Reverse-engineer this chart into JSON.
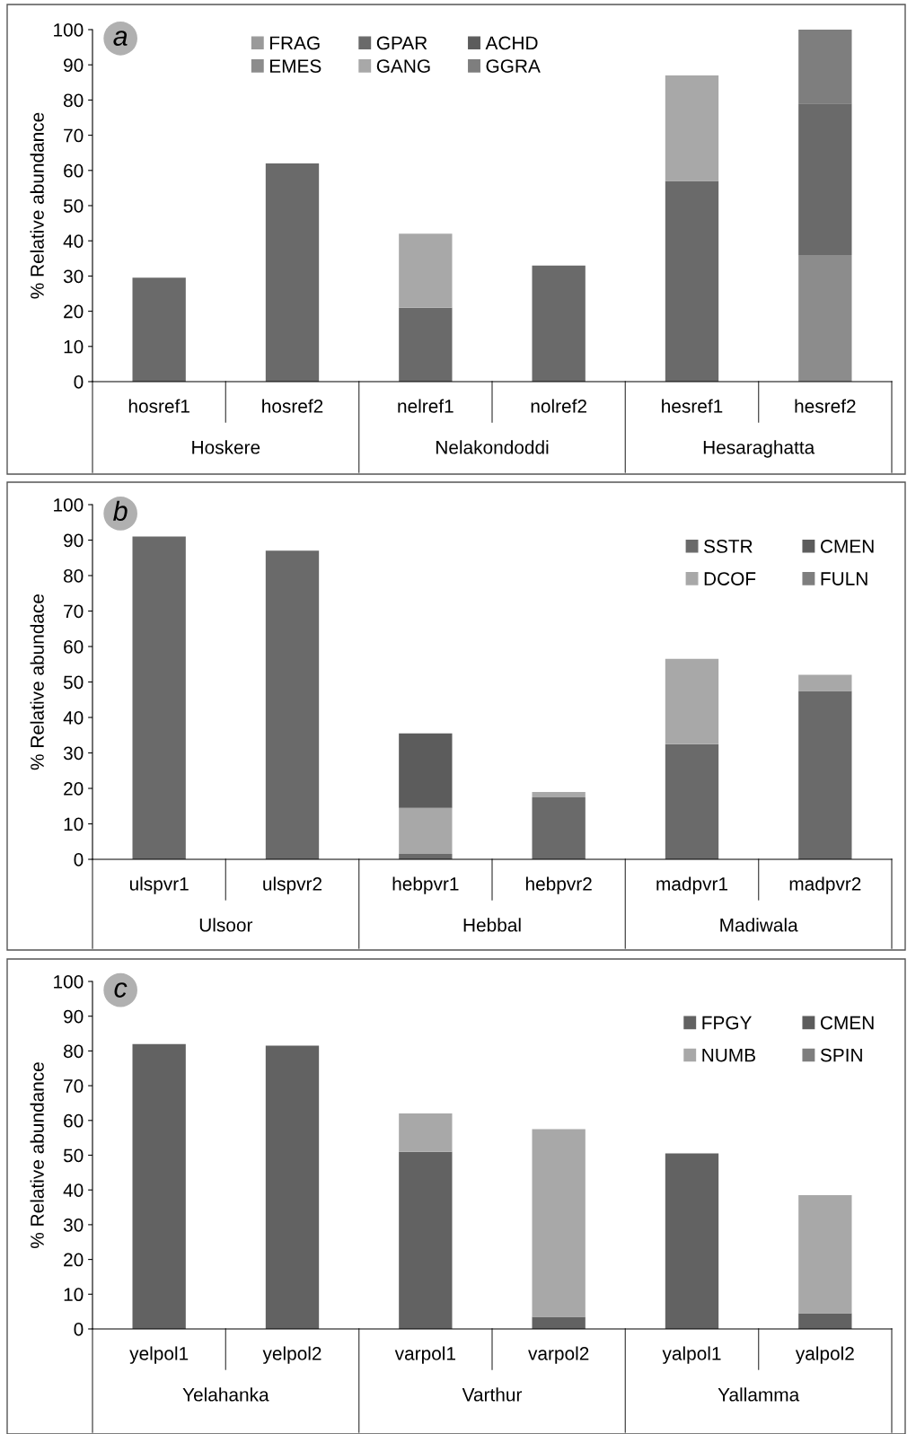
{
  "chart_data": [
    {
      "type": "bar",
      "stacked": true,
      "title": "a",
      "ylabel": "% Relative abundance",
      "categories": [
        "hosref1",
        "hosref2",
        "nelref1",
        "nolref2",
        "hesref1",
        "hesref2"
      ],
      "annotations": [
        "Hoskere",
        "Nelakondoddi",
        "Hesaraghatta"
      ],
      "ylim": [
        0,
        100
      ],
      "yticks": [
        0,
        10,
        20,
        30,
        40,
        50,
        60,
        70,
        80,
        90,
        100
      ],
      "grid": false,
      "legend": "top",
      "series": [
        {
          "name": "FRAG",
          "color": "#9a9a9a",
          "values": [
            null,
            null,
            null,
            null,
            null,
            null
          ]
        },
        {
          "name": "EMES",
          "color": "#8c8c8c",
          "values": [
            null,
            null,
            null,
            null,
            null,
            36
          ]
        },
        {
          "name": "GPAR",
          "color": "#6a6a6a",
          "values": [
            29.5,
            62,
            21,
            33,
            57,
            43
          ]
        },
        {
          "name": "GANG",
          "color": "#a8a8a8",
          "values": [
            null,
            null,
            21,
            null,
            30,
            null
          ]
        },
        {
          "name": "ACHD",
          "color": "#5c5c5c",
          "values": [
            null,
            null,
            null,
            null,
            null,
            null
          ]
        },
        {
          "name": "GGRA",
          "color": "#7e7e7e",
          "values": [
            null,
            null,
            null,
            null,
            null,
            21
          ]
        }
      ]
    },
    {
      "type": "bar",
      "stacked": true,
      "title": "b",
      "ylabel": "% Relative abundace",
      "categories": [
        "ulspvr1",
        "ulspvr2",
        "hebpvr1",
        "hebpvr2",
        "madpvr1",
        "madpvr2"
      ],
      "annotations": [
        "Ulsoor",
        "Hebbal",
        "Madiwala"
      ],
      "ylim": [
        0,
        100
      ],
      "yticks": [
        0,
        10,
        20,
        30,
        40,
        50,
        60,
        70,
        80,
        90,
        100
      ],
      "grid": false,
      "legend": "top right",
      "series": [
        {
          "name": "SSTR",
          "color": "#6a6a6a",
          "values": [
            91,
            87,
            1.5,
            17.5,
            32.5,
            47.5
          ]
        },
        {
          "name": "DCOF",
          "color": "#a8a8a8",
          "values": [
            null,
            null,
            13,
            1.5,
            24,
            4.5
          ]
        },
        {
          "name": "CMEN",
          "color": "#5c5c5c",
          "values": [
            null,
            null,
            21,
            null,
            null,
            null
          ]
        },
        {
          "name": "FULN",
          "color": "#7e7e7e",
          "values": [
            null,
            null,
            null,
            null,
            null,
            null
          ]
        }
      ]
    },
    {
      "type": "bar",
      "stacked": true,
      "title": "c",
      "ylabel": "% Relative abundance",
      "categories": [
        "yelpol1",
        "yelpol2",
        "varpol1",
        "varpol2",
        "yalpol1",
        "yalpol2"
      ],
      "annotations": [
        "Yelahanka",
        "Varthur",
        "Yallamma"
      ],
      "ylim": [
        0,
        100
      ],
      "yticks": [
        0,
        10,
        20,
        30,
        40,
        50,
        60,
        70,
        80,
        90,
        100
      ],
      "grid": false,
      "legend": "top right",
      "series": [
        {
          "name": "FPGY",
          "color": "#626262",
          "values": [
            82,
            81.5,
            51,
            3.5,
            50.5,
            4.5
          ]
        },
        {
          "name": "NUMB",
          "color": "#a8a8a8",
          "values": [
            null,
            null,
            11,
            54,
            null,
            34
          ]
        },
        {
          "name": "CMEN",
          "color": "#5c5c5c",
          "values": [
            null,
            null,
            null,
            null,
            null,
            null
          ]
        },
        {
          "name": "SPIN",
          "color": "#7e7e7e",
          "values": [
            null,
            null,
            null,
            null,
            null,
            null
          ]
        }
      ]
    }
  ]
}
